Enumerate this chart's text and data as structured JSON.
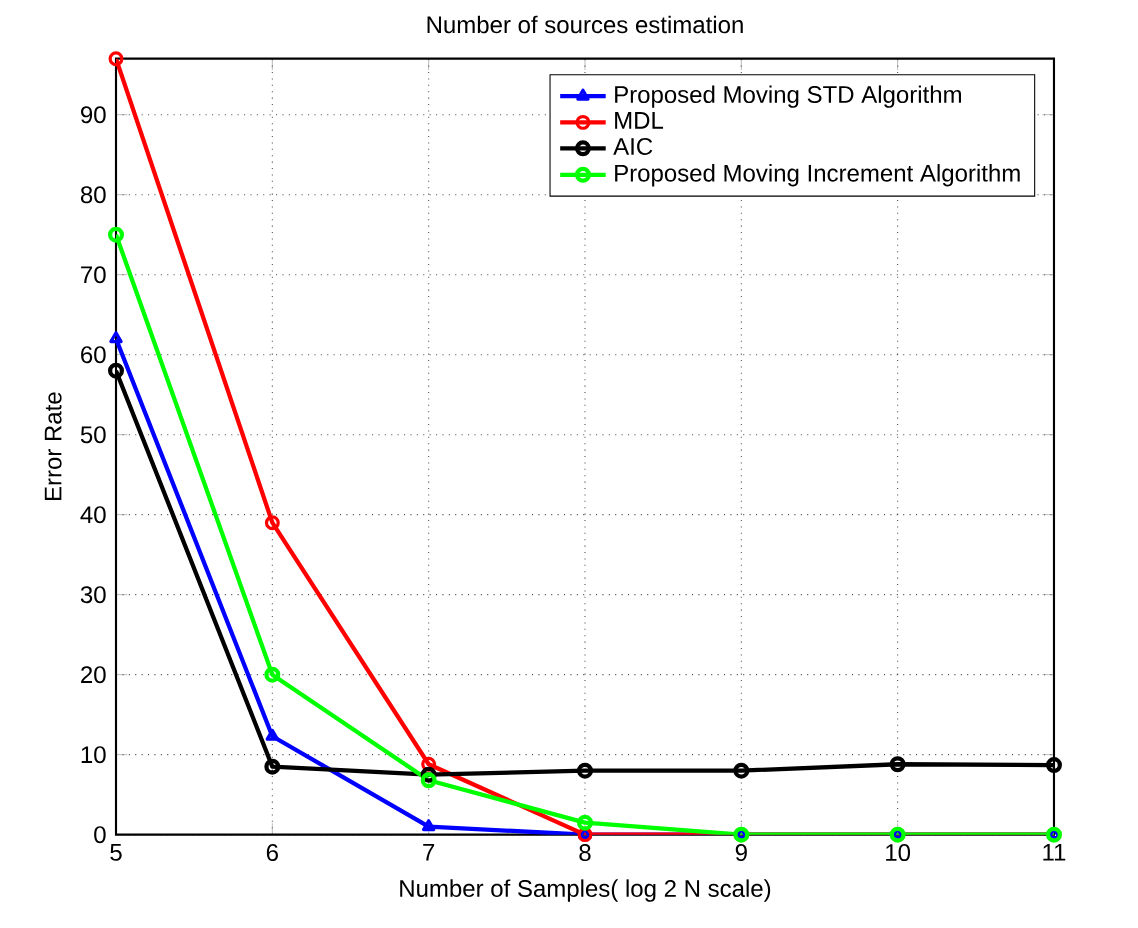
{
  "chart_data": {
    "type": "line",
    "title": "Number of sources estimation",
    "xlabel": "Number of Samples( log 2 N scale)",
    "ylabel": "Error Rate",
    "x": [
      5,
      6,
      7,
      8,
      9,
      10,
      11
    ],
    "series": [
      {
        "name": "Proposed Moving STD Algorithm",
        "color": "#0000ff",
        "marker": "triangle",
        "values": [
          62,
          12.3,
          1,
          0,
          0,
          0,
          0
        ]
      },
      {
        "name": "MDL",
        "color": "#ff0000",
        "marker": "circle",
        "values": [
          97,
          39,
          8.8,
          0,
          0,
          0,
          0
        ]
      },
      {
        "name": "AIC",
        "color": "#000000",
        "marker": "circle",
        "values": [
          58,
          8.5,
          7.5,
          8,
          8,
          8.8,
          8.7
        ]
      },
      {
        "name": "Proposed Moving Increment Algorithm",
        "color": "#00ff00",
        "marker": "circle",
        "values": [
          75,
          20,
          6.8,
          1.5,
          0,
          0,
          0
        ]
      }
    ],
    "xlim": [
      5,
      11
    ],
    "ylim": [
      0,
      97
    ],
    "xticks": [
      5,
      6,
      7,
      8,
      9,
      10,
      11
    ],
    "yticks": [
      0,
      10,
      20,
      30,
      40,
      50,
      60,
      70,
      80,
      90
    ],
    "grid": true,
    "legend": "top right",
    "line_style": "solid"
  }
}
